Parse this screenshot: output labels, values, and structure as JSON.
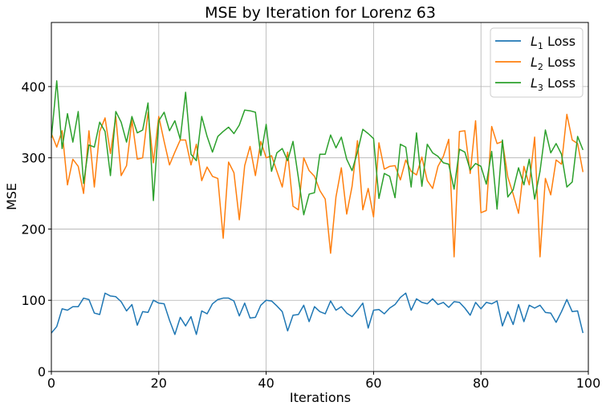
{
  "chart_data": {
    "type": "line",
    "title": "MSE by Iteration for Lorenz 63",
    "xlabel": "Iterations",
    "ylabel": "MSE",
    "xlim": [
      0,
      100
    ],
    "ylim": [
      0,
      490
    ],
    "xticks": [
      0,
      20,
      40,
      60,
      80,
      100
    ],
    "yticks": [
      0,
      100,
      200,
      300,
      400
    ],
    "grid": true,
    "legend_position": "top-right",
    "x": [
      0,
      1,
      2,
      3,
      4,
      5,
      6,
      7,
      8,
      9,
      10,
      11,
      12,
      13,
      14,
      15,
      16,
      17,
      18,
      19,
      20,
      21,
      22,
      23,
      24,
      25,
      26,
      27,
      28,
      29,
      30,
      31,
      32,
      33,
      34,
      35,
      36,
      37,
      38,
      39,
      40,
      41,
      42,
      43,
      44,
      45,
      46,
      47,
      48,
      49,
      50,
      51,
      52,
      53,
      54,
      55,
      56,
      57,
      58,
      59,
      60,
      61,
      62,
      63,
      64,
      65,
      66,
      67,
      68,
      69,
      70,
      71,
      72,
      73,
      74,
      75,
      76,
      77,
      78,
      79,
      80,
      81,
      82,
      83,
      84,
      85,
      86,
      87,
      88,
      89,
      90,
      91,
      92,
      93,
      94,
      95,
      96,
      97,
      98,
      99
    ],
    "series": [
      {
        "name": "L1 Loss",
        "label_base": "L",
        "label_sub": "1",
        "label_rest": " Loss",
        "color": "#1f77b4",
        "values": [
          54,
          63,
          88,
          86,
          91,
          91,
          103,
          101,
          82,
          80,
          110,
          106,
          105,
          98,
          85,
          94,
          65,
          84,
          83,
          100,
          96,
          95,
          72,
          52,
          76,
          64,
          77,
          52,
          85,
          81,
          95,
          101,
          103,
          103,
          99,
          78,
          96,
          75,
          76,
          93,
          100,
          99,
          92,
          84,
          57,
          79,
          80,
          93,
          70,
          91,
          84,
          81,
          99,
          86,
          91,
          82,
          77,
          86,
          96,
          61,
          86,
          87,
          81,
          89,
          94,
          104,
          110,
          86,
          102,
          97,
          95,
          102,
          94,
          97,
          90,
          98,
          97,
          89,
          79,
          97,
          88,
          97,
          95,
          99,
          64,
          84,
          66,
          94,
          70,
          93,
          89,
          93,
          83,
          82,
          69,
          84,
          101,
          84,
          85,
          54
        ]
      },
      {
        "name": "L2 Loss",
        "label_base": "L",
        "label_sub": "2",
        "label_rest": " Loss",
        "color": "#ff7f0e",
        "values": [
          334,
          315,
          338,
          262,
          298,
          288,
          250,
          338,
          259,
          337,
          356,
          306,
          358,
          275,
          289,
          353,
          298,
          300,
          364,
          293,
          358,
          323,
          290,
          308,
          325,
          325,
          290,
          319,
          268,
          287,
          274,
          271,
          187,
          294,
          279,
          213,
          289,
          316,
          275,
          323,
          300,
          303,
          281,
          259,
          308,
          232,
          227,
          300,
          282,
          274,
          254,
          242,
          166,
          245,
          286,
          221,
          260,
          324,
          227,
          257,
          217,
          321,
          284,
          288,
          289,
          269,
          297,
          281,
          276,
          301,
          268,
          257,
          288,
          302,
          326,
          161,
          337,
          338,
          278,
          352,
          223,
          226,
          344,
          320,
          323,
          273,
          249,
          222,
          288,
          262,
          329,
          161,
          271,
          248,
          297,
          291,
          361,
          325,
          320,
          280
        ]
      },
      {
        "name": "L3 Loss",
        "label_base": "L",
        "label_sub": "3",
        "label_rest": " Loss",
        "color": "#2ca02c",
        "values": [
          328,
          408,
          313,
          362,
          322,
          365,
          264,
          318,
          315,
          350,
          337,
          275,
          365,
          350,
          322,
          358,
          335,
          339,
          377,
          240,
          352,
          364,
          338,
          352,
          326,
          392,
          305,
          296,
          358,
          330,
          308,
          330,
          337,
          343,
          334,
          346,
          367,
          366,
          364,
          303,
          347,
          281,
          307,
          313,
          296,
          323,
          272,
          220,
          249,
          251,
          305,
          305,
          332,
          314,
          329,
          298,
          282,
          308,
          340,
          334,
          327,
          243,
          278,
          274,
          244,
          319,
          315,
          259,
          335,
          260,
          319,
          307,
          302,
          293,
          291,
          256,
          312,
          308,
          283,
          292,
          288,
          263,
          309,
          228,
          325,
          245,
          255,
          286,
          262,
          298,
          242,
          281,
          339,
          307,
          320,
          305,
          259,
          266,
          330,
          311
        ]
      }
    ]
  }
}
